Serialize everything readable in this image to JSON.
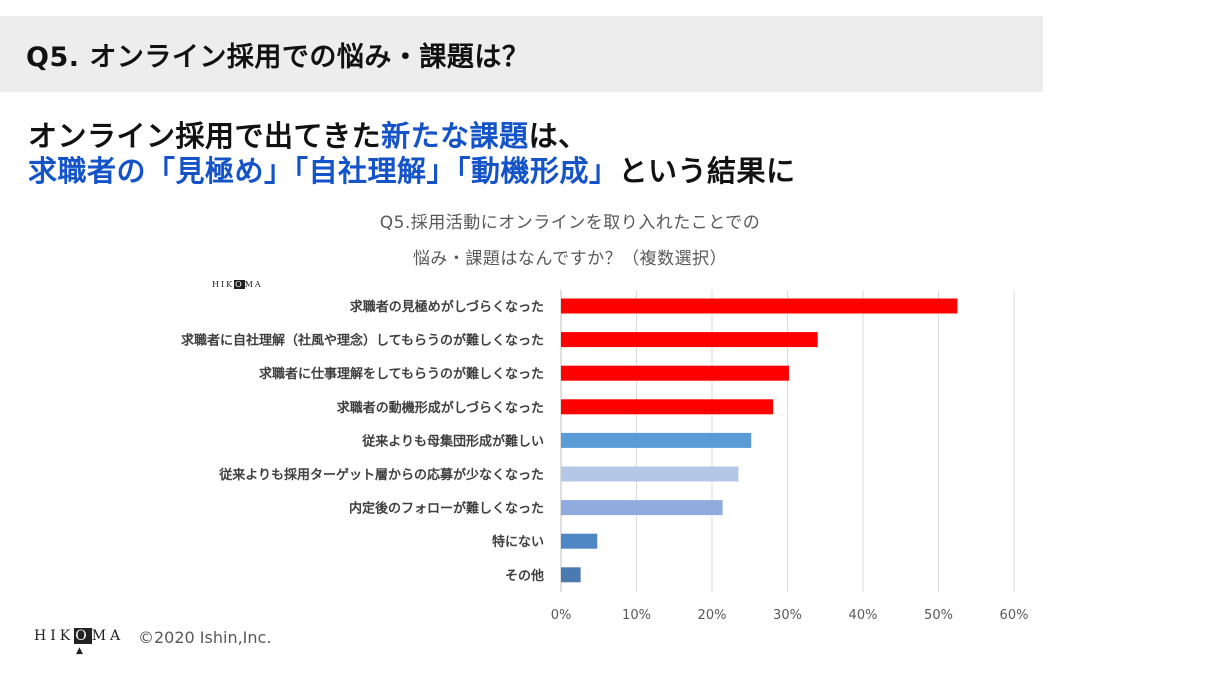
{
  "header": {
    "title": "Q5. オンライン採用での悩み・課題は？"
  },
  "headline": {
    "line1_part1": "オンライン採用で出てきた",
    "line1_part2": "新たな課題",
    "line1_part3": "は、",
    "line2_part1": "求職者の「見極め」「自社理解」「動機形成」",
    "line2_part2": "という結果に"
  },
  "brand": {
    "logo_left": "HIK",
    "logo_o": "O",
    "logo_right": "MA",
    "copyright": "©2020 Ishin,Inc."
  },
  "colors": {
    "accent_blue": "#1453c8",
    "bar_red": "#ff0000"
  },
  "chart_data": {
    "type": "bar",
    "orientation": "horizontal",
    "title_line1": "Q5.採用活動にオンラインを取り入れたことでの",
    "title_line2": "悩み・課題はなんですか？（複数選択）",
    "categories": [
      "求職者の見極めがしづらくなった",
      "求職者に自社理解（社風や理念）してもらうのが難しくなった",
      "求職者に仕事理解をしてもらうのが難しくなった",
      "求職者の動機形成がしづらくなった",
      "従来よりも母集団形成が難しい",
      "従来よりも採用ターゲット層からの応募が少なくなった",
      "内定後のフォローが難しくなった",
      "特にない",
      "その他"
    ],
    "values": [
      52.5,
      34.0,
      30.2,
      28.1,
      25.2,
      23.5,
      21.4,
      4.8,
      2.6
    ],
    "bar_colors": [
      "#ff0000",
      "#ff0000",
      "#ff0000",
      "#ff0000",
      "#5b9bd5",
      "#b4c7e7",
      "#8faadc",
      "#4f86c6",
      "#4a7ab0"
    ],
    "xlim": [
      0,
      60
    ],
    "x_ticks": [
      "0%",
      "10%",
      "20%",
      "30%",
      "40%",
      "50%",
      "60%"
    ],
    "grid": true,
    "legend": "none"
  }
}
